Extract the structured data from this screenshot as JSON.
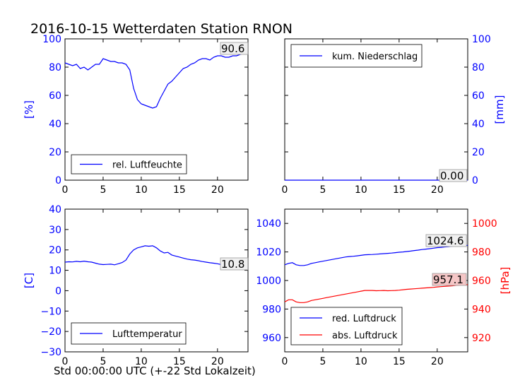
{
  "figure": {
    "title": "2016-10-15 Wetterdaten Station RNON",
    "xlabel": "Std 00:00:00 UTC (+-22 Std Lokalzeit)"
  },
  "colors": {
    "blue": "#0000ff",
    "red": "#ff0000",
    "value_box_bg": "#f0f0f0",
    "value_box_red_bg": "#f5c6c6"
  },
  "chart_data": [
    {
      "id": "humidity",
      "type": "line",
      "ylabel": "[%]",
      "ylabel_side": "left",
      "xlim": [
        0,
        24
      ],
      "ylim": [
        0,
        100
      ],
      "xticks": [
        0,
        5,
        10,
        15,
        20
      ],
      "yticks": [
        0,
        20,
        40,
        60,
        80,
        100
      ],
      "ytick_labels": [
        "0",
        "20",
        "40",
        "60",
        "80",
        "100"
      ],
      "legend": "lower-left",
      "value_label": "90.6",
      "value_label_y": 90.6,
      "series": [
        {
          "name": "rel. Luftfeuchte",
          "color": "#0000ff",
          "x": [
            0,
            0.5,
            1,
            1.5,
            2,
            2.5,
            3,
            3.5,
            4,
            4.5,
            5,
            5.5,
            6,
            6.5,
            7,
            7.5,
            8,
            8.5,
            9,
            9.5,
            10,
            10.5,
            11,
            11.5,
            12,
            12.5,
            13,
            13.5,
            14,
            14.5,
            15,
            15.5,
            16,
            16.5,
            17,
            17.5,
            18,
            18.5,
            19,
            19.5,
            20,
            20.5,
            21,
            21.5,
            22,
            22.5,
            23,
            23.5,
            24
          ],
          "y": [
            83,
            82,
            81,
            82,
            79,
            80,
            78,
            80,
            82,
            82,
            86,
            85,
            84,
            84,
            83,
            83,
            82,
            78,
            65,
            57,
            54,
            53,
            52,
            51,
            52,
            58,
            63,
            68,
            70,
            73,
            76,
            79,
            80,
            82,
            83,
            85,
            86,
            86,
            85,
            87,
            88,
            88,
            87,
            87,
            88,
            88,
            89,
            90,
            90.6
          ]
        }
      ]
    },
    {
      "id": "precipitation",
      "type": "line",
      "ylabel": "[mm]",
      "ylabel_side": "right",
      "xlim": [
        0,
        24
      ],
      "ylim": [
        0,
        100
      ],
      "xticks": [
        0,
        5,
        10,
        15,
        20
      ],
      "yticks": [
        0,
        20,
        40,
        60,
        80,
        100
      ],
      "ytick_labels": [
        "0",
        "20",
        "40",
        "60",
        "80",
        "100"
      ],
      "legend": "upper-left",
      "value_label": "0.00",
      "value_label_y": 0,
      "series": [
        {
          "name": "kum. Niederschlag",
          "color": "#0000ff",
          "x": [
            0,
            24
          ],
          "y": [
            0,
            0
          ]
        }
      ]
    },
    {
      "id": "temperature",
      "type": "line",
      "ylabel": "[C]",
      "ylabel_side": "left",
      "xlim": [
        0,
        24
      ],
      "ylim": [
        -30,
        40
      ],
      "xticks": [
        0,
        5,
        10,
        15,
        20
      ],
      "yticks": [
        -30,
        -20,
        -10,
        0,
        10,
        20,
        30,
        40
      ],
      "ytick_labels": [
        "−30",
        "−20",
        "−10",
        "0",
        "10",
        "20",
        "30",
        "40"
      ],
      "legend": "lower-left",
      "value_label": "10.8",
      "value_label_y": 10.8,
      "series": [
        {
          "name": "Lufttemperatur",
          "color": "#0000ff",
          "x": [
            0,
            0.5,
            1,
            1.5,
            2,
            2.5,
            3,
            3.5,
            4,
            4.5,
            5,
            5.5,
            6,
            6.5,
            7,
            7.5,
            8,
            8.5,
            9,
            9.5,
            10,
            10.5,
            11,
            11.5,
            12,
            12.5,
            13,
            13.5,
            14,
            14.5,
            15,
            15.5,
            16,
            16.5,
            17,
            17.5,
            18,
            18.5,
            19,
            19.5,
            20,
            20.5,
            21,
            21.5,
            22,
            22.5,
            23,
            23.5,
            24
          ],
          "y": [
            14,
            14.2,
            14.1,
            14.4,
            14.2,
            14.5,
            14.2,
            14,
            13.5,
            13,
            12.8,
            12.9,
            13,
            12.7,
            13.2,
            13.8,
            15,
            18,
            20,
            21,
            21.5,
            22,
            21.8,
            22,
            21,
            19.5,
            18.5,
            18.8,
            17.5,
            17,
            16.5,
            16,
            15.5,
            15.2,
            15,
            14.7,
            14.3,
            14,
            13.7,
            13.5,
            13.2,
            12.8,
            12.5,
            12.2,
            11.8,
            11.5,
            11.2,
            11,
            10.8
          ]
        }
      ]
    },
    {
      "id": "pressure",
      "type": "line",
      "ylabel": "[hPa]",
      "ylabel_side": "right",
      "xlim": [
        0,
        24
      ],
      "ylim_left": [
        950,
        1050
      ],
      "ylim_right": [
        910,
        1010
      ],
      "xticks": [
        0,
        5,
        10,
        15,
        20
      ],
      "yticks_left": [
        960,
        980,
        1000,
        1020,
        1040
      ],
      "yticks_right": [
        920,
        940,
        960,
        980,
        1000
      ],
      "legend": "lower-left",
      "series": [
        {
          "name": "red. Luftdruck",
          "color": "#0000ff",
          "axis": "left",
          "value_label": "1024.6",
          "x": [
            0,
            0.5,
            1,
            1.5,
            2,
            2.5,
            3,
            3.5,
            4,
            4.5,
            5,
            5.5,
            6,
            6.5,
            7,
            7.5,
            8,
            8.5,
            9,
            9.5,
            10,
            10.5,
            11,
            11.5,
            12,
            12.5,
            13,
            13.5,
            14,
            14.5,
            15,
            15.5,
            16,
            16.5,
            17,
            17.5,
            18,
            18.5,
            19,
            19.5,
            20,
            20.5,
            21,
            21.5,
            22,
            22.5,
            23,
            23.5,
            24
          ],
          "y": [
            1011,
            1012,
            1012.5,
            1011,
            1010.5,
            1010.5,
            1011,
            1012,
            1012.5,
            1013,
            1013.5,
            1014,
            1014.5,
            1015,
            1015.5,
            1016,
            1016.5,
            1016.8,
            1017,
            1017.3,
            1017.6,
            1018,
            1018.1,
            1018.2,
            1018.4,
            1018.6,
            1018.8,
            1019,
            1019.2,
            1019.5,
            1019.8,
            1020,
            1020.3,
            1020.6,
            1021,
            1021.3,
            1021.7,
            1022,
            1022.3,
            1022.6,
            1023,
            1023.2,
            1023.5,
            1023.7,
            1024,
            1024.2,
            1024.3,
            1024.5,
            1024.6
          ]
        },
        {
          "name": "abs. Luftdruck",
          "color": "#ff0000",
          "axis": "right",
          "value_label": "957.1",
          "x": [
            0,
            0.5,
            1,
            1.5,
            2,
            2.5,
            3,
            3.5,
            4,
            4.5,
            5,
            5.5,
            6,
            6.5,
            7,
            7.5,
            8,
            8.5,
            9,
            9.5,
            10,
            10.5,
            11,
            11.5,
            12,
            12.5,
            13,
            13.5,
            14,
            14.5,
            15,
            15.5,
            16,
            16.5,
            17,
            17.5,
            18,
            18.5,
            19,
            19.5,
            20,
            20.5,
            21,
            21.5,
            22,
            22.5,
            23,
            23.5,
            24
          ],
          "y": [
            945,
            946.5,
            946.5,
            945,
            944.5,
            944.5,
            945,
            946,
            946.5,
            947,
            947.5,
            948,
            948.5,
            949,
            949.5,
            950,
            950.5,
            951,
            951.5,
            952,
            952.5,
            953,
            953,
            953,
            952.8,
            952.9,
            953,
            952.8,
            952.9,
            953,
            953.2,
            953.5,
            953.8,
            954,
            954.2,
            954.4,
            954.6,
            954.8,
            955,
            955.2,
            955.5,
            955.7,
            955.9,
            956.1,
            956.3,
            956.6,
            956.8,
            957,
            957.1
          ]
        }
      ]
    }
  ]
}
